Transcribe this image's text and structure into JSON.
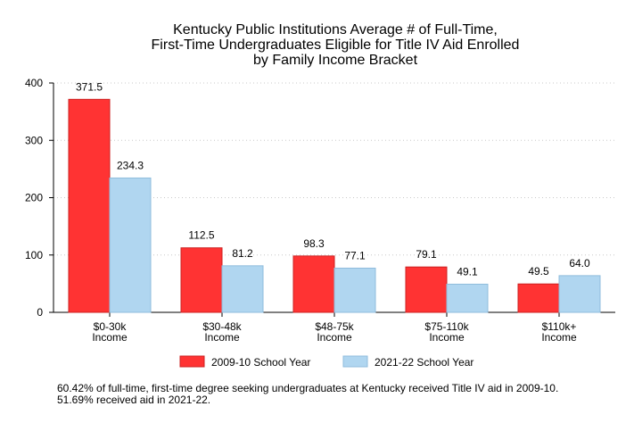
{
  "chart_data": {
    "type": "bar",
    "title": [
      "Kentucky Public Institutions Average # of Full-Time,",
      "First-Time Undergraduates Eligible for Title IV Aid Enrolled",
      "by Family Income Bracket"
    ],
    "categories": [
      [
        "$0-30k",
        "Income"
      ],
      [
        "$30-48k",
        "Income"
      ],
      [
        "$48-75k",
        "Income"
      ],
      [
        "$75-110k",
        "Income"
      ],
      [
        "$110k+",
        "Income"
      ]
    ],
    "series": [
      {
        "name": "2009-10 School Year",
        "color": "#ff3333",
        "stroke": "#cc2020",
        "values": [
          371.5,
          112.5,
          98.3,
          79.1,
          49.5
        ],
        "labels": [
          "371.5",
          "112.5",
          "98.3",
          "79.1",
          "49.5"
        ]
      },
      {
        "name": "2021-22 School Year",
        "color": "#b0d6f0",
        "stroke": "#8fbcdc",
        "values": [
          234.3,
          81.2,
          77.1,
          49.1,
          64.0
        ],
        "labels": [
          "234.3",
          "81.2",
          "77.1",
          "49.1",
          "64.0"
        ]
      }
    ],
    "yticks": [
      0,
      100,
      200,
      300,
      400
    ],
    "ylim": [
      0,
      400
    ],
    "xlabel": "",
    "ylabel": "",
    "grid": true,
    "legend": "bottom"
  },
  "footnote": "60.42% of full-time, first-time degree seeking undergraduates at Kentucky received Title IV aid in 2009-10. 51.69% received aid in 2021-22."
}
